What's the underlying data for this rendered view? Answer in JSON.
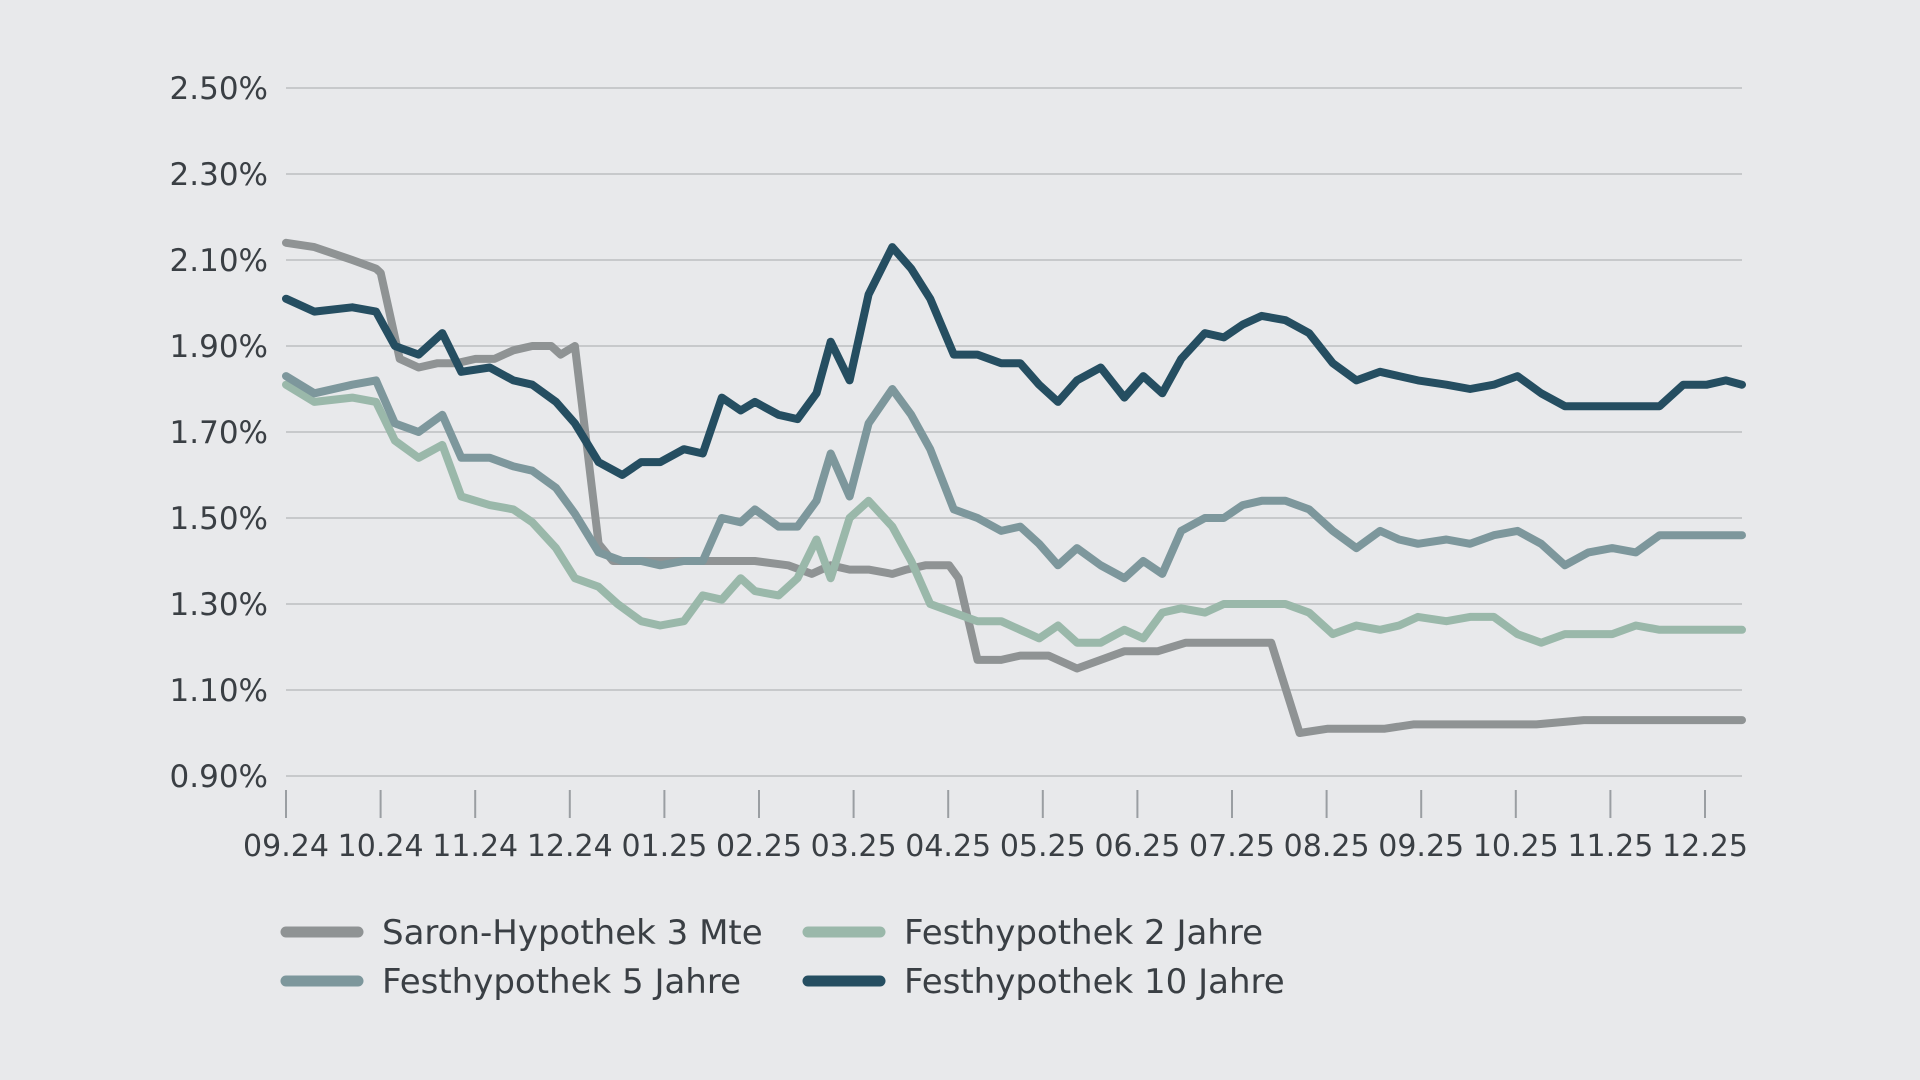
{
  "chart_data": {
    "type": "line",
    "title": "",
    "xlabel": "",
    "ylabel": "",
    "ylim": [
      0.9,
      2.5
    ],
    "y_ticks": [
      "2.50%",
      "2.30%",
      "2.10%",
      "1.90%",
      "1.70%",
      "1.50%",
      "1.30%",
      "1.10%",
      "0.90%"
    ],
    "y_tick_values": [
      2.5,
      2.3,
      2.1,
      1.9,
      1.7,
      1.5,
      1.3,
      1.1,
      0.9
    ],
    "x_ticks": [
      "09.24",
      "10.24",
      "11.24",
      "12.24",
      "01.25",
      "02.25",
      "03.25",
      "04.25",
      "05.25",
      "06.25",
      "07.25",
      "08.25",
      "09.25",
      "10.25",
      "11.25",
      "12.25"
    ],
    "x_range": [
      0,
      15.37
    ],
    "grid": true,
    "legend_position": "bottom",
    "series": [
      {
        "name": "Saron-Hypothek 3 Mte",
        "color": "#8f9394",
        "x": [
          0,
          0.3,
          0.7,
          0.95,
          1.0,
          1.2,
          1.4,
          1.6,
          1.8,
          2.0,
          2.2,
          2.4,
          2.6,
          2.8,
          2.9,
          3.05,
          3.3,
          3.45,
          3.55,
          3.8,
          4.05,
          4.35,
          4.65,
          4.95,
          5.3,
          5.55,
          5.75,
          5.95,
          6.15,
          6.4,
          6.55,
          6.75,
          6.95,
          7.0,
          7.1,
          7.3,
          7.55,
          7.75,
          8.05,
          8.35,
          8.6,
          8.85,
          9.0,
          9.2,
          9.5,
          9.7,
          9.75,
          10.0,
          10.2,
          10.4,
          10.7,
          11.0,
          11.3,
          11.6,
          11.9,
          12.1,
          12.3,
          12.7,
          13.2,
          13.7,
          14.3,
          14.8,
          15.37
        ],
        "values": [
          2.14,
          2.13,
          2.1,
          2.08,
          2.07,
          1.87,
          1.85,
          1.86,
          1.86,
          1.87,
          1.87,
          1.89,
          1.9,
          1.9,
          1.88,
          1.9,
          1.44,
          1.4,
          1.4,
          1.4,
          1.4,
          1.4,
          1.4,
          1.4,
          1.39,
          1.37,
          1.39,
          1.38,
          1.38,
          1.37,
          1.38,
          1.39,
          1.39,
          1.39,
          1.36,
          1.17,
          1.17,
          1.18,
          1.18,
          1.15,
          1.17,
          1.19,
          1.19,
          1.19,
          1.21,
          1.21,
          1.21,
          1.21,
          1.21,
          1.21,
          1.0,
          1.01,
          1.01,
          1.01,
          1.02,
          1.02,
          1.02,
          1.02,
          1.02,
          1.03,
          1.03,
          1.03,
          1.03
        ]
      },
      {
        "name": "Festhypothek 2 Jahre",
        "color": "#9ab8aa",
        "x": [
          0,
          0.3,
          0.7,
          0.95,
          1.15,
          1.4,
          1.65,
          1.85,
          2.15,
          2.4,
          2.6,
          2.85,
          3.05,
          3.3,
          3.5,
          3.75,
          3.95,
          4.2,
          4.4,
          4.6,
          4.8,
          4.95,
          5.2,
          5.4,
          5.6,
          5.75,
          5.95,
          6.15,
          6.4,
          6.6,
          6.8,
          7.05,
          7.3,
          7.55,
          7.75,
          7.95,
          8.15,
          8.35,
          8.6,
          8.85,
          9.05,
          9.25,
          9.45,
          9.7,
          9.9,
          10.1,
          10.3,
          10.55,
          10.8,
          11.05,
          11.3,
          11.55,
          11.75,
          11.95,
          12.25,
          12.5,
          12.75,
          13.0,
          13.25,
          13.5,
          13.75,
          14.0,
          14.25,
          14.5,
          14.75,
          15.0,
          15.2,
          15.37
        ],
        "values": [
          1.81,
          1.77,
          1.78,
          1.77,
          1.68,
          1.64,
          1.67,
          1.55,
          1.53,
          1.52,
          1.49,
          1.43,
          1.36,
          1.34,
          1.3,
          1.26,
          1.25,
          1.26,
          1.32,
          1.31,
          1.36,
          1.33,
          1.32,
          1.36,
          1.45,
          1.36,
          1.5,
          1.54,
          1.48,
          1.4,
          1.3,
          1.28,
          1.26,
          1.26,
          1.24,
          1.22,
          1.25,
          1.21,
          1.21,
          1.24,
          1.22,
          1.28,
          1.29,
          1.28,
          1.3,
          1.3,
          1.3,
          1.3,
          1.28,
          1.23,
          1.25,
          1.24,
          1.25,
          1.27,
          1.26,
          1.27,
          1.27,
          1.23,
          1.21,
          1.23,
          1.23,
          1.23,
          1.25,
          1.24,
          1.24,
          1.24,
          1.24,
          1.24
        ]
      },
      {
        "name": "Festhypothek 5 Jahre",
        "color": "#7d979c",
        "x": [
          0,
          0.3,
          0.7,
          0.95,
          1.15,
          1.4,
          1.65,
          1.85,
          2.15,
          2.4,
          2.6,
          2.85,
          3.05,
          3.3,
          3.55,
          3.75,
          3.95,
          4.2,
          4.4,
          4.6,
          4.8,
          4.95,
          5.2,
          5.4,
          5.6,
          5.75,
          5.95,
          6.15,
          6.4,
          6.6,
          6.8,
          7.05,
          7.3,
          7.55,
          7.75,
          7.95,
          8.15,
          8.35,
          8.6,
          8.85,
          9.05,
          9.25,
          9.45,
          9.7,
          9.9,
          10.1,
          10.3,
          10.55,
          10.8,
          11.05,
          11.3,
          11.55,
          11.75,
          11.95,
          12.25,
          12.5,
          12.75,
          13.0,
          13.25,
          13.5,
          13.75,
          14.0,
          14.25,
          14.5,
          14.75,
          15.0,
          15.2,
          15.37
        ],
        "values": [
          1.83,
          1.79,
          1.81,
          1.82,
          1.72,
          1.7,
          1.74,
          1.64,
          1.64,
          1.62,
          1.61,
          1.57,
          1.51,
          1.42,
          1.4,
          1.4,
          1.39,
          1.4,
          1.4,
          1.5,
          1.49,
          1.52,
          1.48,
          1.48,
          1.54,
          1.65,
          1.55,
          1.72,
          1.8,
          1.74,
          1.66,
          1.52,
          1.5,
          1.47,
          1.48,
          1.44,
          1.39,
          1.43,
          1.39,
          1.36,
          1.4,
          1.37,
          1.47,
          1.5,
          1.5,
          1.53,
          1.54,
          1.54,
          1.52,
          1.47,
          1.43,
          1.47,
          1.45,
          1.44,
          1.45,
          1.44,
          1.46,
          1.47,
          1.44,
          1.39,
          1.42,
          1.43,
          1.42,
          1.46,
          1.46,
          1.46,
          1.46,
          1.46
        ]
      },
      {
        "name": "Festhypothek 10 Jahre",
        "color": "#254e61",
        "x": [
          0,
          0.3,
          0.7,
          0.95,
          1.15,
          1.4,
          1.65,
          1.85,
          2.15,
          2.4,
          2.6,
          2.85,
          3.05,
          3.3,
          3.55,
          3.75,
          3.95,
          4.2,
          4.4,
          4.6,
          4.8,
          4.95,
          5.2,
          5.4,
          5.6,
          5.75,
          5.95,
          6.15,
          6.4,
          6.6,
          6.8,
          7.05,
          7.3,
          7.55,
          7.75,
          7.95,
          8.15,
          8.35,
          8.6,
          8.85,
          9.05,
          9.25,
          9.45,
          9.7,
          9.9,
          10.1,
          10.3,
          10.55,
          10.8,
          11.05,
          11.3,
          11.55,
          11.75,
          11.95,
          12.25,
          12.5,
          12.75,
          13.0,
          13.25,
          13.5,
          13.75,
          14.0,
          14.25,
          14.5,
          14.75,
          15.0,
          15.2,
          15.37
        ],
        "values": [
          2.01,
          1.98,
          1.99,
          1.98,
          1.9,
          1.88,
          1.93,
          1.84,
          1.85,
          1.82,
          1.81,
          1.77,
          1.72,
          1.63,
          1.6,
          1.63,
          1.63,
          1.66,
          1.65,
          1.78,
          1.75,
          1.77,
          1.74,
          1.73,
          1.79,
          1.91,
          1.82,
          2.02,
          2.13,
          2.08,
          2.01,
          1.88,
          1.88,
          1.86,
          1.86,
          1.81,
          1.77,
          1.82,
          1.85,
          1.78,
          1.83,
          1.79,
          1.87,
          1.93,
          1.92,
          1.95,
          1.97,
          1.96,
          1.93,
          1.86,
          1.82,
          1.84,
          1.83,
          1.82,
          1.81,
          1.8,
          1.81,
          1.83,
          1.79,
          1.76,
          1.76,
          1.76,
          1.76,
          1.76,
          1.81,
          1.81,
          1.82,
          1.81
        ]
      }
    ],
    "legend": [
      {
        "label": "Saron-Hypothek 3 Mte",
        "color": "#8f9394"
      },
      {
        "label": "Festhypothek 2 Jahre",
        "color": "#9ab8aa"
      },
      {
        "label": "Festhypothek 5 Jahre",
        "color": "#7d979c"
      },
      {
        "label": "Festhypothek 10 Jahre",
        "color": "#254e61"
      }
    ]
  }
}
